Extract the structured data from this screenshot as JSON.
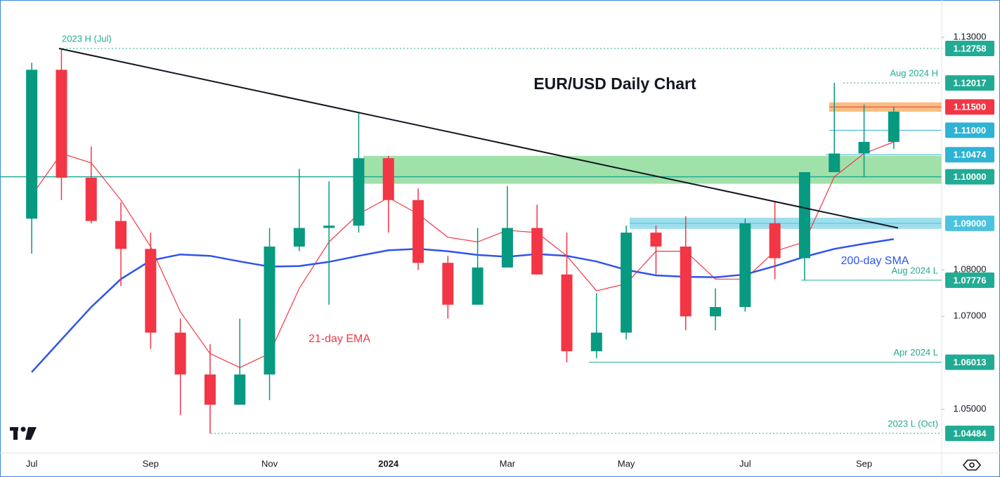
{
  "chart_data": {
    "type": "candlestick",
    "title": "EUR/USD Daily Chart",
    "categories": [
      "Jul",
      null,
      null,
      null,
      "Sep",
      null,
      null,
      null,
      "Nov",
      null,
      null,
      null,
      "2024",
      null,
      null,
      null,
      "Mar",
      null,
      null,
      null,
      "May",
      null,
      null,
      null,
      "Jul",
      null,
      null,
      null,
      "Sep",
      null
    ],
    "ohlc": {
      "open": [
        1.091,
        1.123,
        1.0998,
        1.0905,
        1.0845,
        1.0665,
        1.0575,
        1.051,
        1.0575,
        1.085,
        1.089,
        1.0895,
        1.104,
        1.095,
        1.0815,
        1.0725,
        1.0805,
        1.089,
        1.079,
        1.0625,
        1.0665,
        1.088,
        1.085,
        1.07,
        1.072,
        1.09,
        1.0825,
        1.101,
        1.105,
        1.1075
      ],
      "high": [
        1.1245,
        1.1276,
        1.1065,
        1.0945,
        1.088,
        1.0695,
        1.064,
        1.0695,
        1.089,
        1.1017,
        1.099,
        1.114,
        1.1045,
        1.0975,
        1.083,
        1.089,
        1.098,
        1.094,
        1.088,
        1.075,
        1.0895,
        1.0895,
        1.0915,
        1.076,
        1.091,
        1.0948,
        1.101,
        1.1202,
        1.1155,
        1.115
      ],
      "low": [
        1.0835,
        1.095,
        1.09,
        1.0765,
        1.063,
        1.0488,
        1.0448,
        1.0515,
        1.052,
        1.084,
        1.0725,
        1.088,
        1.088,
        1.08,
        1.0695,
        1.076,
        1.084,
        1.079,
        1.0601,
        1.061,
        1.065,
        1.079,
        1.067,
        1.067,
        1.071,
        1.078,
        1.0778,
        1.102,
        1.1,
        1.106
      ],
      "close": [
        1.123,
        1.0998,
        1.0905,
        1.0845,
        1.0665,
        1.0575,
        1.051,
        1.0575,
        1.085,
        1.089,
        1.0895,
        1.104,
        1.095,
        1.0815,
        1.0725,
        1.0805,
        1.089,
        1.079,
        1.0625,
        1.0665,
        1.088,
        1.085,
        1.07,
        1.072,
        1.09,
        1.0825,
        1.101,
        1.105,
        1.1075,
        1.114
      ],
      "up_color": "#089981",
      "down_color": "#f23645"
    },
    "lines": [
      {
        "name": "21-day EMA",
        "color": "#f23645",
        "values": [
          1.096,
          1.105,
          1.103,
          1.095,
          1.085,
          1.071,
          1.062,
          1.059,
          1.062,
          1.076,
          1.086,
          1.092,
          1.0955,
          1.092,
          1.087,
          1.086,
          1.0885,
          1.088,
          1.083,
          1.0755,
          1.077,
          1.084,
          1.084,
          1.078,
          1.078,
          1.084,
          1.086,
          1.1,
          1.105,
          1.1075
        ]
      },
      {
        "name": "200-day SMA",
        "color": "#2f54eb",
        "values": [
          1.058,
          1.065,
          1.072,
          1.078,
          1.082,
          1.0833,
          1.083,
          1.0818,
          1.0807,
          1.0808,
          1.0817,
          1.083,
          1.0842,
          1.0845,
          1.084,
          1.0832,
          1.0828,
          1.0834,
          1.083,
          1.0818,
          1.08,
          1.0788,
          1.0785,
          1.0784,
          1.079,
          1.0808,
          1.0828,
          1.0845,
          1.0856,
          1.0866
        ]
      }
    ],
    "trendline": [
      1.12758,
      1.089
    ],
    "zones": [
      {
        "low": 1.114,
        "high": 1.116,
        "color": "#f7b26a"
      },
      {
        "low": 1.0985,
        "high": 1.1045,
        "color": "#8fdc9a"
      },
      {
        "low": 1.0888,
        "high": 1.0912,
        "color": "#8ed8ea"
      }
    ],
    "levels": [
      {
        "value": 1.12758,
        "label": "1.12758",
        "note": "2023 H (Jul)",
        "color": "#22ab94"
      },
      {
        "value": 1.12017,
        "label": "1.12017",
        "note": "Aug 2024 H",
        "color": "#22ab94"
      },
      {
        "value": 1.115,
        "label": "1.11500",
        "color": "#f23645"
      },
      {
        "value": 1.11,
        "label": "1.11000",
        "color": "#2eb3d4"
      },
      {
        "value": 1.10474,
        "label": "1.10474",
        "color": "#2eb3d4"
      },
      {
        "value": 1.1,
        "label": "1.10000",
        "color": "#22ab94"
      },
      {
        "value": 1.09,
        "label": "1.09000",
        "color": "#4cc3de"
      },
      {
        "value": 1.07776,
        "label": "1.07776",
        "note": "Aug 2024 L",
        "color": "#22ab94"
      },
      {
        "value": 1.06013,
        "label": "1.06013",
        "note": "Apr 2024 L",
        "color": "#22ab94"
      },
      {
        "value": 1.04484,
        "label": "1.04484",
        "note": "2023 L (Oct)",
        "color": "#22ab94"
      }
    ],
    "ylim": [
      1.0406,
      1.138
    ],
    "yticks": [
      {
        "value": 1.13,
        "label": "1.13000"
      },
      {
        "value": 1.08,
        "label": "1.08000"
      },
      {
        "value": 1.07,
        "label": "1.07000"
      },
      {
        "value": 1.05,
        "label": "1.05000"
      }
    ]
  }
}
